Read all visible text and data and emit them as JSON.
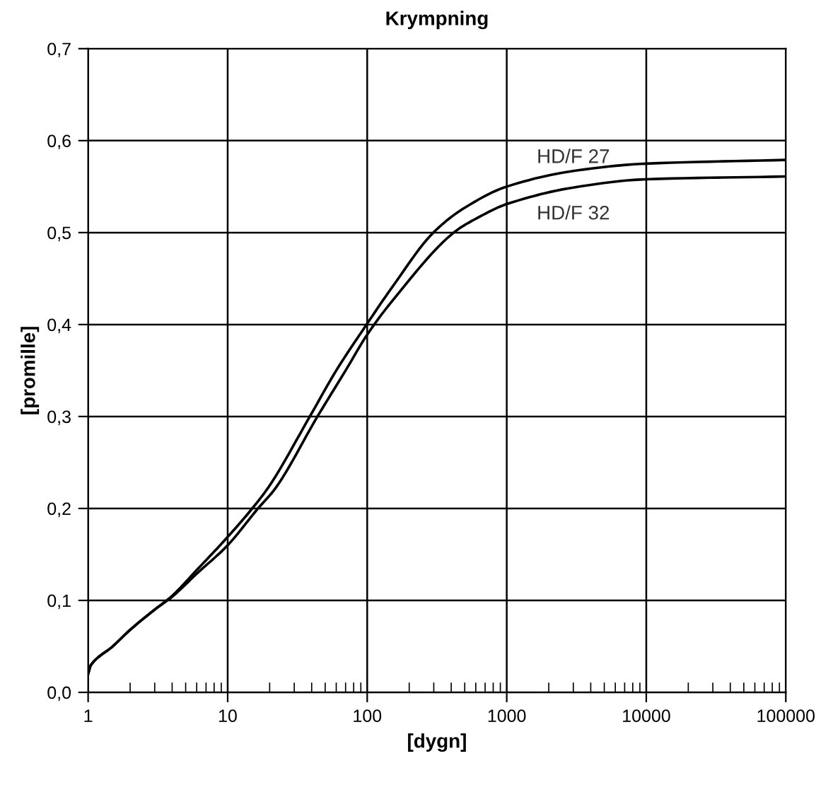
{
  "chart_data": {
    "type": "line",
    "title": "Krympning",
    "xlabel": "[dygn]",
    "ylabel": "[promille]",
    "log": "x",
    "xlim": [
      1,
      100000
    ],
    "xticks": [
      1,
      10,
      100,
      1000,
      10000,
      100000
    ],
    "ylim": [
      0,
      0.7
    ],
    "yticks": [
      {
        "value": 0,
        "label": "0,0"
      },
      {
        "value": 0.1,
        "label": "0,1"
      },
      {
        "value": 0.2,
        "label": "0,2"
      },
      {
        "value": 0.3,
        "label": "0,3"
      },
      {
        "value": 0.4,
        "label": "0,4"
      },
      {
        "value": 0.5,
        "label": "0,5"
      },
      {
        "value": 0.6,
        "label": "0,6"
      },
      {
        "value": 0.7,
        "label": "0,7"
      }
    ],
    "grid": true,
    "legend": false,
    "marker": "none",
    "line_style": "solid",
    "series": [
      {
        "name": "HD/F 27",
        "color": "#000000",
        "x": [
          1,
          1.05,
          1.5,
          2,
          3,
          4,
          6,
          10,
          15,
          20,
          38.8,
          60,
          100,
          150,
          298,
          500,
          1000,
          3000,
          10000,
          100000
        ],
        "values": [
          0.02,
          0.03,
          0.05,
          0.068,
          0.09,
          0.105,
          0.133,
          0.169,
          0.2,
          0.225,
          0.3,
          0.35,
          0.401,
          0.44,
          0.5,
          0.527,
          0.55,
          0.567,
          0.575,
          0.579
        ]
      },
      {
        "name": "HD/F 32",
        "color": "#000000",
        "x": [
          1,
          1.05,
          1.5,
          2,
          3,
          4,
          6,
          10,
          16.5,
          22,
          44,
          70,
          100,
          150,
          417,
          600,
          1000,
          3000,
          10000,
          100000
        ],
        "values": [
          0.02,
          0.03,
          0.05,
          0.068,
          0.09,
          0.104,
          0.129,
          0.16,
          0.2,
          0.222,
          0.3,
          0.35,
          0.389,
          0.425,
          0.5,
          0.515,
          0.531,
          0.549,
          0.558,
          0.561
        ]
      }
    ]
  }
}
